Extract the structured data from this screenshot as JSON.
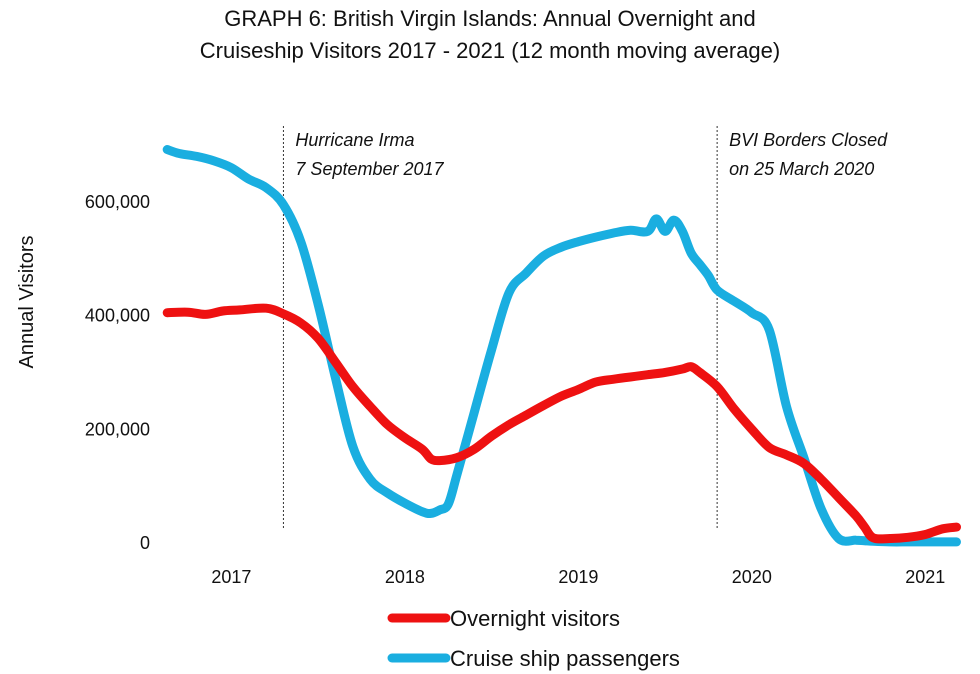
{
  "chart_data": {
    "type": "line",
    "title": "GRAPH 6: British Virgin Islands: Annual Overnight and",
    "subtitle": "Cruiseship Visitors 2017 - 2021 (12 month moving average)",
    "ylabel": "Annual Visitors",
    "xlabel": "",
    "xlim": [
      2016.6,
      2021.2
    ],
    "ylim": [
      0,
      700000
    ],
    "yticks": [
      0,
      200000,
      400000,
      600000
    ],
    "ytick_labels": [
      "0",
      "200,000",
      "400,000",
      "600,000"
    ],
    "xticks": [
      2017,
      2018,
      2019,
      2020,
      2021
    ],
    "xtick_labels": [
      "2017",
      "2018",
      "2019",
      "2020",
      "2021"
    ],
    "annotations": [
      {
        "x": 2017.3,
        "lines": [
          "Hurricane Irma",
          "7 September 2017"
        ]
      },
      {
        "x": 2019.8,
        "lines": [
          "BVI Borders Closed",
          "on 25 March 2020"
        ]
      }
    ],
    "series": [
      {
        "name": "Overnight visitors",
        "color": "#ee1111",
        "x": [
          2016.63,
          2016.75,
          2016.85,
          2016.95,
          2017.05,
          2017.2,
          2017.3,
          2017.4,
          2017.5,
          2017.6,
          2017.7,
          2017.8,
          2017.9,
          2018.0,
          2018.1,
          2018.15,
          2018.2,
          2018.3,
          2018.4,
          2018.5,
          2018.6,
          2018.7,
          2018.8,
          2018.9,
          2019.0,
          2019.1,
          2019.2,
          2019.3,
          2019.4,
          2019.5,
          2019.6,
          2019.65,
          2019.7,
          2019.8,
          2019.9,
          2020.0,
          2020.1,
          2020.2,
          2020.3,
          2020.4,
          2020.5,
          2020.6,
          2020.65,
          2020.7,
          2020.8,
          2020.9,
          2021.0,
          2021.1,
          2021.18
        ],
        "values": [
          405000,
          406000,
          402000,
          408000,
          410000,
          413000,
          403000,
          387000,
          360000,
          318000,
          275000,
          240000,
          208000,
          185000,
          165000,
          148000,
          145000,
          150000,
          165000,
          188000,
          208000,
          225000,
          242000,
          258000,
          270000,
          283000,
          288000,
          292000,
          296000,
          300000,
          306000,
          310000,
          300000,
          275000,
          235000,
          200000,
          168000,
          155000,
          140000,
          112000,
          80000,
          48000,
          28000,
          9000,
          8000,
          10000,
          15000,
          25000,
          28000
        ]
      },
      {
        "name": "Cruise ship passengers",
        "color": "#1aaee0",
        "x": [
          2016.63,
          2016.7,
          2016.8,
          2016.9,
          2017.0,
          2017.1,
          2017.2,
          2017.3,
          2017.4,
          2017.5,
          2017.6,
          2017.7,
          2017.8,
          2017.9,
          2018.0,
          2018.1,
          2018.15,
          2018.2,
          2018.25,
          2018.3,
          2018.4,
          2018.5,
          2018.6,
          2018.7,
          2018.8,
          2018.9,
          2019.0,
          2019.1,
          2019.2,
          2019.3,
          2019.4,
          2019.45,
          2019.5,
          2019.55,
          2019.6,
          2019.65,
          2019.7,
          2019.75,
          2019.8,
          2019.9,
          2020.0,
          2020.1,
          2020.2,
          2020.3,
          2020.4,
          2020.5,
          2020.6,
          2020.65,
          2020.7,
          2020.8,
          2020.9,
          2021.0,
          2021.1,
          2021.18
        ],
        "values": [
          692000,
          685000,
          680000,
          672000,
          660000,
          640000,
          625000,
          595000,
          530000,
          420000,
          290000,
          170000,
          112000,
          88000,
          70000,
          55000,
          52000,
          58000,
          68000,
          120000,
          230000,
          340000,
          440000,
          475000,
          505000,
          520000,
          530000,
          538000,
          545000,
          550000,
          548000,
          570000,
          548000,
          568000,
          548000,
          510000,
          490000,
          470000,
          445000,
          425000,
          405000,
          375000,
          240000,
          150000,
          60000,
          8000,
          5000,
          4000,
          3000,
          2000,
          2000,
          2000,
          2000,
          2000
        ]
      }
    ]
  }
}
